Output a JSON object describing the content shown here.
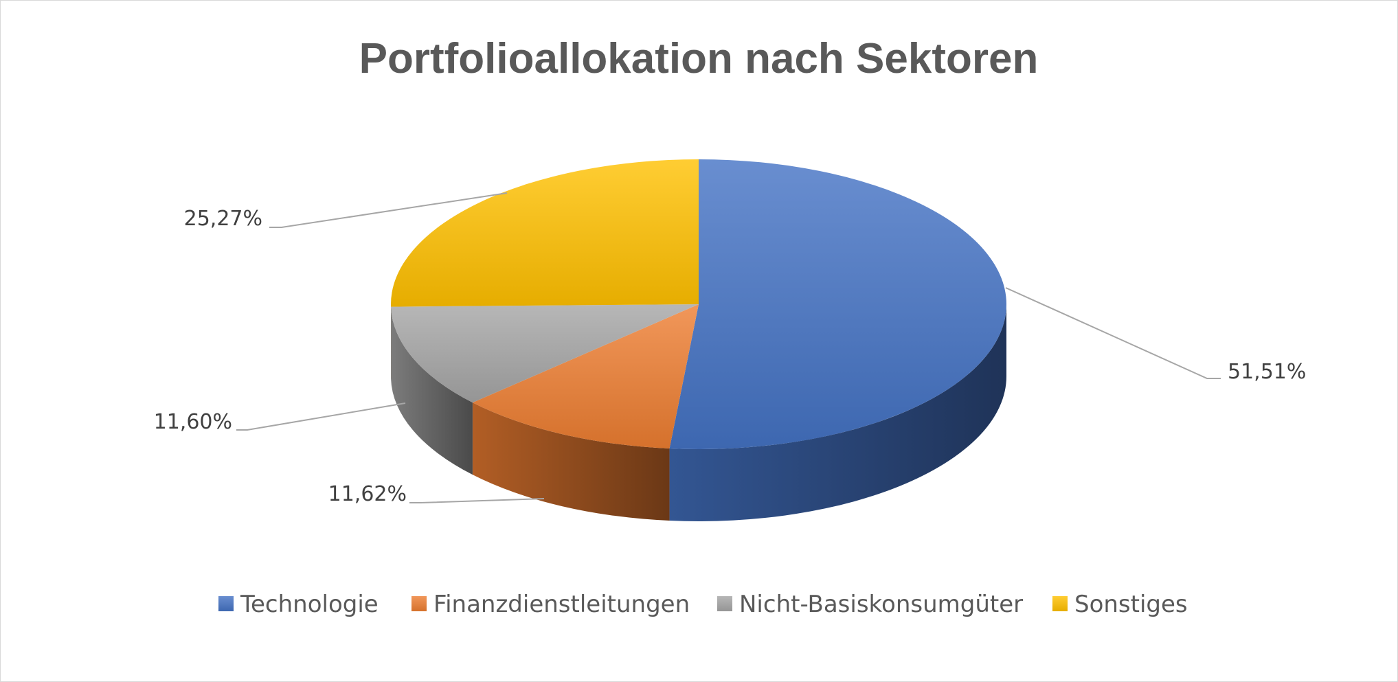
{
  "chart_data": {
    "type": "pie",
    "style": "3d",
    "title": "Portfolioallokation nach Sektoren",
    "categories": [
      "Technologie",
      "Finanzdienstleitungen",
      "Nicht-Basiskonsumgüter",
      "Sonstiges"
    ],
    "values": [
      51.51,
      11.62,
      11.6,
      25.27
    ],
    "value_labels": [
      "51,51%",
      "11,62%",
      "11,60%",
      "25,27%"
    ],
    "colors": [
      "#4472C4",
      "#ED7D31",
      "#A5A5A5",
      "#FFC000"
    ],
    "legend_position": "bottom"
  }
}
